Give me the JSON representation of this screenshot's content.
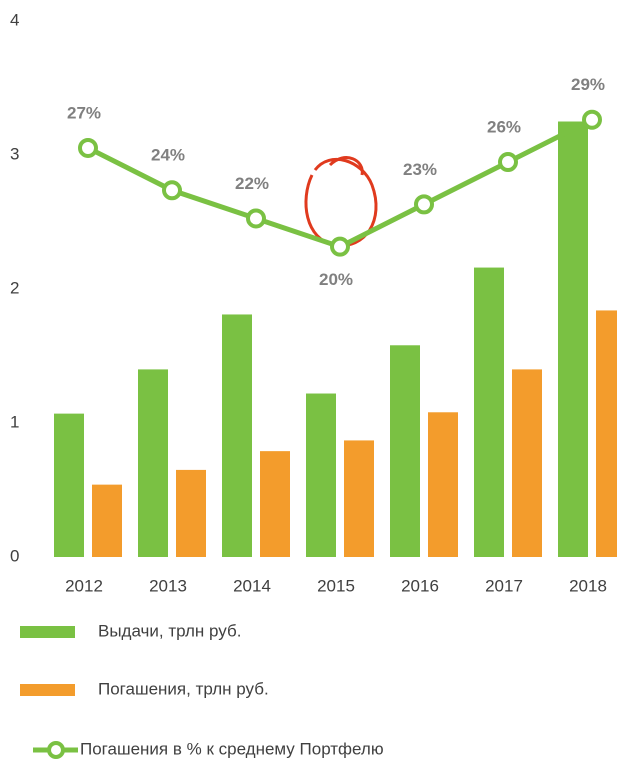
{
  "chart_data": {
    "type": "bar_line",
    "categories": [
      "2012",
      "2013",
      "2014",
      "2015",
      "2016",
      "2017",
      "2018"
    ],
    "series": [
      {
        "name": "Выдачи, трлн руб.",
        "color": "#7ac143",
        "values": [
          1.07,
          1.4,
          1.81,
          1.22,
          1.58,
          2.16,
          3.25
        ]
      },
      {
        "name": "Погашения, трлн руб.",
        "color": "#f39c2c",
        "values": [
          0.54,
          0.65,
          0.79,
          0.87,
          1.08,
          1.4,
          1.84
        ]
      },
      {
        "name": "Погашения в % к среднему Портфелю",
        "color": "#7ac143",
        "axis": "y2",
        "values": [
          27,
          24,
          22,
          20,
          23,
          26,
          29
        ],
        "value_labels": [
          "27%",
          "24%",
          "22%",
          "20%",
          "23%",
          "26%",
          "29%"
        ]
      }
    ],
    "ylim": [
      0,
      4
    ],
    "yticks": [
      0,
      1,
      2,
      3,
      4
    ],
    "y2lim": [
      -2,
      36
    ],
    "grid": false
  }
}
